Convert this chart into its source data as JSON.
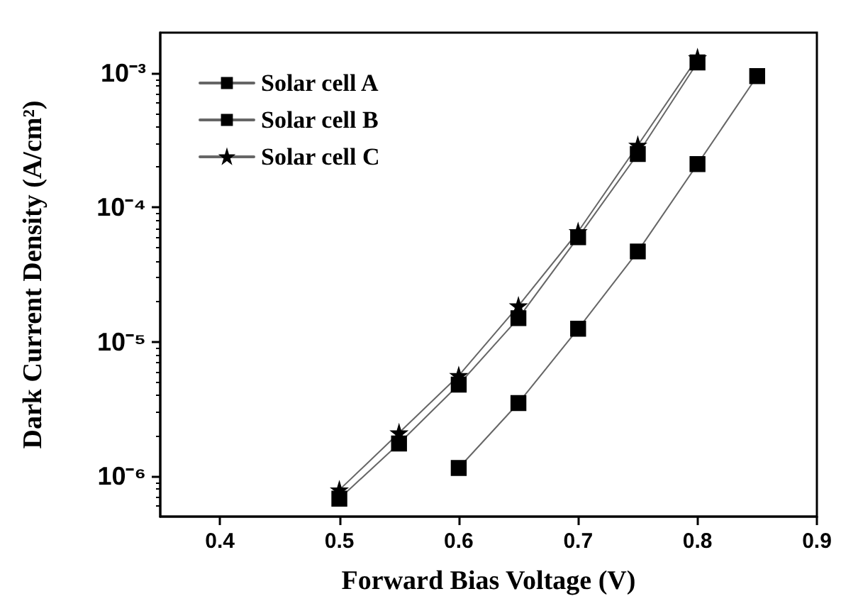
{
  "chart_data": {
    "type": "line",
    "xlabel": "Forward Bias Voltage (V)",
    "ylabel": "Dark Current Density (A/cm²)",
    "log": "y",
    "grid": false,
    "legend": "top left",
    "line_style": "solid",
    "xlim": [
      0.35,
      0.9
    ],
    "xticks": [
      0.4,
      0.5,
      0.6,
      0.7,
      0.8,
      0.9
    ],
    "ylim": [
      5e-07,
      0.002
    ],
    "yticks": [
      {
        "value": 1e-06,
        "label": "10⁻⁶"
      },
      {
        "value": 1e-05,
        "label": "10⁻⁵"
      },
      {
        "value": 0.0001,
        "label": "10⁻⁴"
      },
      {
        "value": 0.001,
        "label": "10⁻³"
      }
    ],
    "series": [
      {
        "name": "Solar cell A",
        "color": "#000000",
        "marker": "square",
        "x": [
          0.5,
          0.55,
          0.6,
          0.65,
          0.7,
          0.75,
          0.8
        ],
        "values": [
          6.8e-07,
          1.75e-06,
          4.8e-06,
          1.5e-05,
          6e-05,
          0.00025,
          0.0012
        ]
      },
      {
        "name": "Solar cell B",
        "color": "#000000",
        "marker": "square",
        "x": [
          0.6,
          0.65,
          0.7,
          0.75,
          0.8,
          0.85
        ],
        "values": [
          1.15e-06,
          3.5e-06,
          1.25e-05,
          4.7e-05,
          0.00021,
          0.00095
        ]
      },
      {
        "name": "Solar cell C",
        "color": "#000000",
        "marker": "star",
        "x": [
          0.5,
          0.55,
          0.6,
          0.65,
          0.7,
          0.75,
          0.8
        ],
        "values": [
          7.9e-07,
          2.1e-06,
          5.6e-06,
          1.85e-05,
          6.6e-05,
          0.00029,
          0.0013
        ]
      }
    ]
  }
}
